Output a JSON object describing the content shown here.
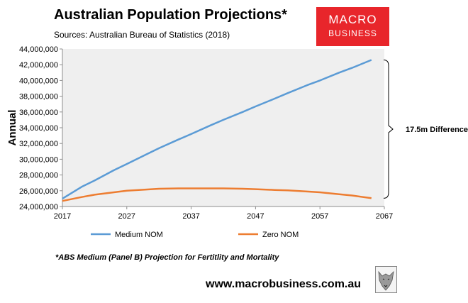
{
  "header": {
    "title": "Australian Population Projections*",
    "subtitle": "Sources: Australian Bureau of Statistics (2018)"
  },
  "logo": {
    "line1": "MACRO",
    "line2": "BUSINESS",
    "color": "#e8262b"
  },
  "chart_data": {
    "type": "line",
    "title": "Australian Population Projections*",
    "xlabel": "",
    "ylabel": "Annual",
    "xlim": [
      2017,
      2067
    ],
    "ylim": [
      24000000,
      44000000
    ],
    "x_ticks": [
      2017,
      2027,
      2037,
      2047,
      2057,
      2067
    ],
    "y_ticks": [
      24000000,
      26000000,
      28000000,
      30000000,
      32000000,
      34000000,
      36000000,
      38000000,
      40000000,
      42000000,
      44000000
    ],
    "y_tick_labels": [
      "24,000,000",
      "26,000,000",
      "28,000,000",
      "30,000,000",
      "32,000,000",
      "34,000,000",
      "36,000,000",
      "38,000,000",
      "40,000,000",
      "42,000,000",
      "44,000,000"
    ],
    "x_tick_labels": [
      "2017",
      "2027",
      "2037",
      "2047",
      "2057",
      "2067"
    ],
    "plot_background": "#efefef",
    "series": [
      {
        "name": "Medium NOM",
        "color": "#5b9bd5",
        "x": [
          2017,
          2020,
          2022,
          2025,
          2027,
          2030,
          2032,
          2035,
          2037,
          2040,
          2042,
          2045,
          2047,
          2050,
          2052,
          2055,
          2057,
          2060,
          2062,
          2065
        ],
        "values": [
          25000000,
          26500000,
          27300000,
          28600000,
          29400000,
          30600000,
          31400000,
          32500000,
          33200000,
          34300000,
          35000000,
          36000000,
          36700000,
          37700000,
          38400000,
          39400000,
          40000000,
          41000000,
          41600000,
          42600000
        ]
      },
      {
        "name": "Zero NOM",
        "color": "#ed7d31",
        "x": [
          2017,
          2020,
          2022,
          2025,
          2027,
          2030,
          2032,
          2035,
          2037,
          2040,
          2042,
          2045,
          2047,
          2050,
          2052,
          2055,
          2057,
          2060,
          2062,
          2065
        ],
        "values": [
          24700000,
          25200000,
          25500000,
          25800000,
          26000000,
          26150000,
          26250000,
          26300000,
          26300000,
          26300000,
          26300000,
          26250000,
          26200000,
          26100000,
          26050000,
          25900000,
          25800000,
          25550000,
          25400000,
          25050000
        ]
      }
    ],
    "annotation": {
      "text": "17.5m Difference",
      "from_value": 42600000,
      "to_value": 25050000
    }
  },
  "footnote": "*ABS Medium (Panel B) Projection for Fertitlity and Mortality",
  "footer": {
    "url": "www.macrobusiness.com.au"
  }
}
